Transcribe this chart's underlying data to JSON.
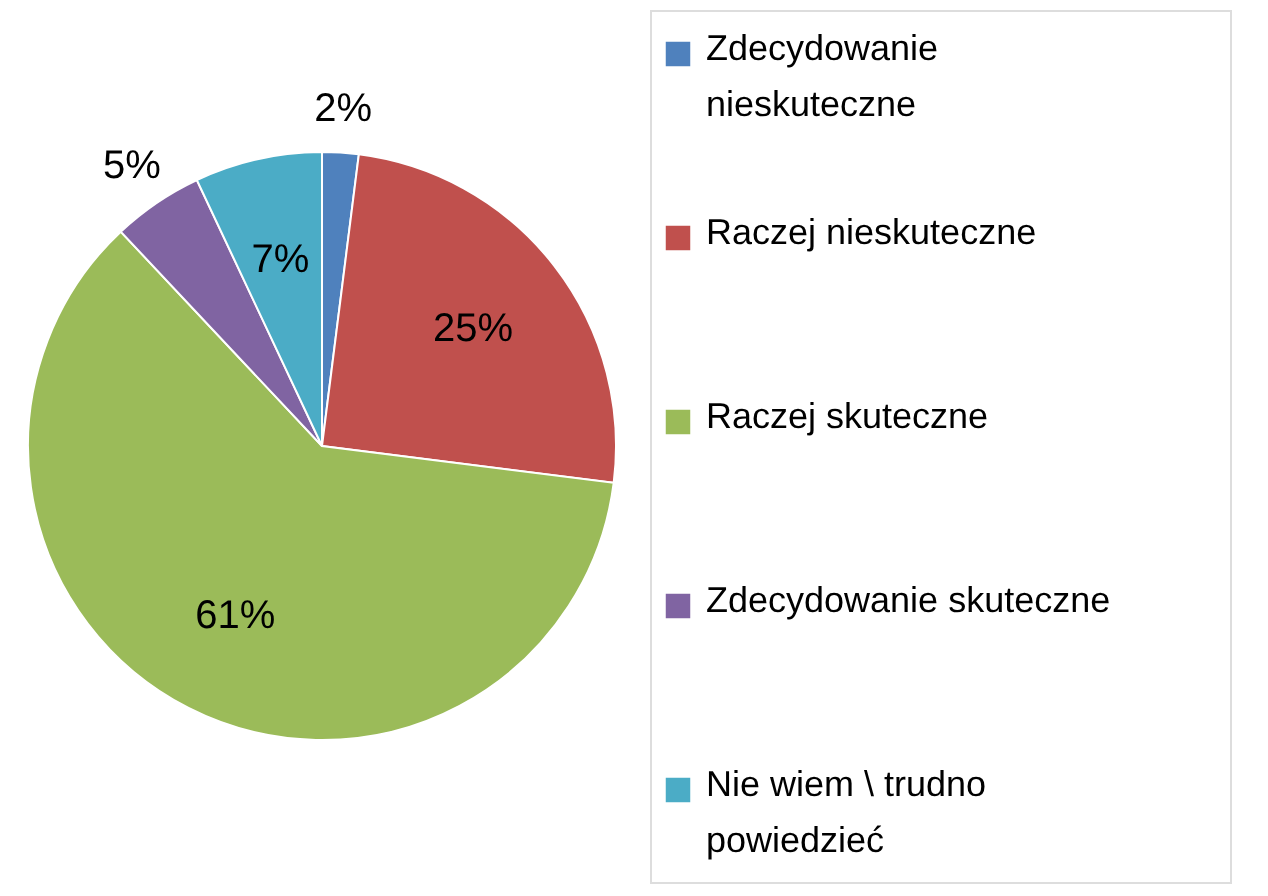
{
  "chart_data": {
    "type": "pie",
    "categories": [
      "Zdecydowanie nieskuteczne",
      "Raczej nieskuteczne",
      "Raczej skuteczne",
      "Zdecydowanie skuteczne",
      "Nie wiem \\ trudno powiedzieć"
    ],
    "values": [
      2,
      25,
      61,
      5,
      7
    ],
    "value_labels": [
      "2%",
      "25%",
      "61%",
      "5%",
      "7%"
    ],
    "colors": [
      "#4f81bd",
      "#c0504d",
      "#9bbb59",
      "#8064a2",
      "#4bacc6"
    ],
    "legend": "right"
  }
}
